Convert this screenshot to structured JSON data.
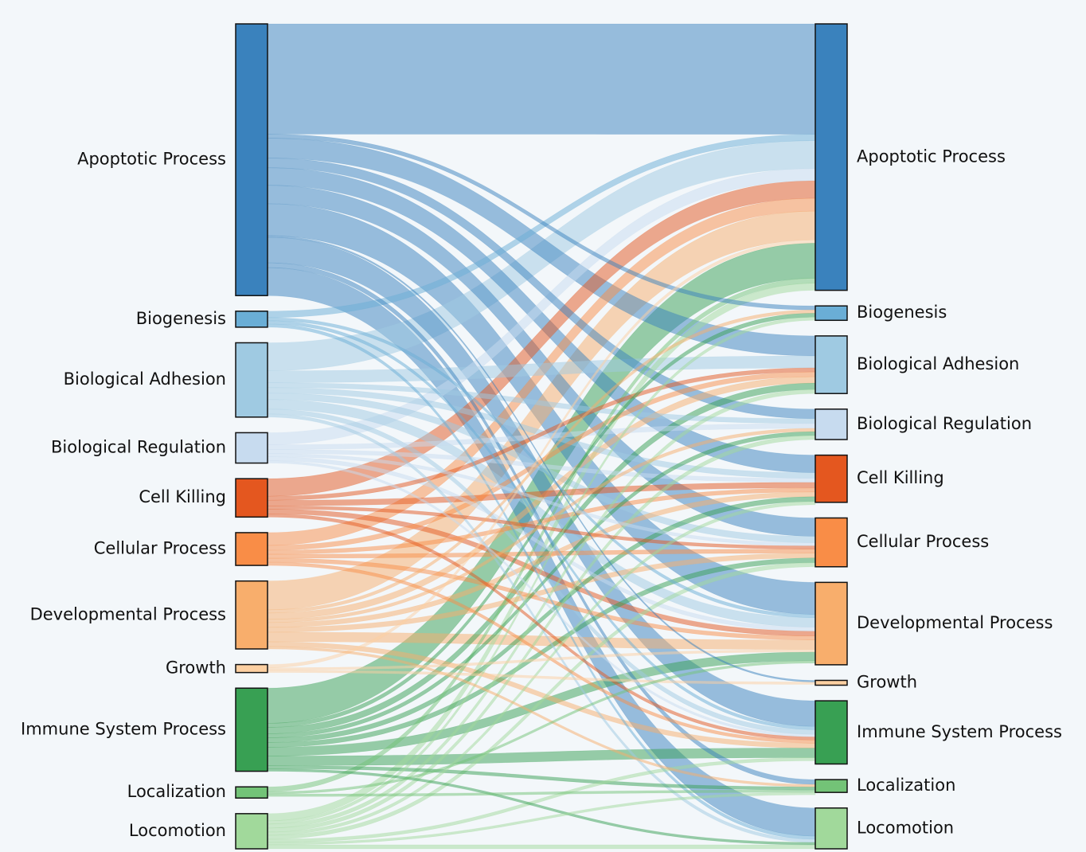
{
  "diagram": {
    "type": "sankey",
    "colors": {
      "background": "#f3f7fa",
      "Apoptotic Process": "#3a82bd",
      "Biogenesis": "#6aaed6",
      "Biological Adhesion": "#9fcae2",
      "Biological Regulation": "#c7dbef",
      "Cell Killing": "#e4571f",
      "Cellular Process": "#f98d47",
      "Developmental Process": "#f8ae6c",
      "Growth": "#fdd0a2",
      "Immune System Process": "#38a053",
      "Localization": "#73c377",
      "Locomotion": "#a1d99b",
      "Other": "#b5b0d5"
    },
    "left_nodes": [
      {
        "label": "Apoptotic Process",
        "value": 34
      },
      {
        "label": "Biogenesis",
        "value": 2
      },
      {
        "label": "Biological Adhesion",
        "value": 9.3
      },
      {
        "label": "Biological Regulation",
        "value": 3.8
      },
      {
        "label": "Cell Killing",
        "value": 4.8
      },
      {
        "label": "Cellular Process",
        "value": 4.1
      },
      {
        "label": "Developmental Process",
        "value": 8.5
      },
      {
        "label": "Growth",
        "value": 1
      },
      {
        "label": "Immune System Process",
        "value": 10.4
      },
      {
        "label": "Localization",
        "value": 1.4
      },
      {
        "label": "Locomotion",
        "value": 4.4
      }
    ],
    "right_nodes": [
      {
        "label": "Apoptotic Process",
        "value": 33.3
      },
      {
        "label": "Biogenesis",
        "value": 1.8
      },
      {
        "label": "Biological Adhesion",
        "value": 7.2
      },
      {
        "label": "Biological Regulation",
        "value": 3.8
      },
      {
        "label": "Cell Killing",
        "value": 5.9
      },
      {
        "label": "Cellular Process",
        "value": 6.1
      },
      {
        "label": "Developmental Process",
        "value": 10.3
      },
      {
        "label": "Growth",
        "value": 0.6
      },
      {
        "label": "Immune System Process",
        "value": 7.9
      },
      {
        "label": "Localization",
        "value": 1.6
      },
      {
        "label": "Locomotion",
        "value": 5.1
      }
    ],
    "links": [
      {
        "source": "Apoptotic Process",
        "target": "Apoptotic Process",
        "value": 13.8
      },
      {
        "source": "Apoptotic Process",
        "target": "Biogenesis",
        "value": 0.5
      },
      {
        "source": "Apoptotic Process",
        "target": "Biological Adhesion",
        "value": 2.5
      },
      {
        "source": "Apoptotic Process",
        "target": "Biological Regulation",
        "value": 1.2
      },
      {
        "source": "Apoptotic Process",
        "target": "Cell Killing",
        "value": 2.2
      },
      {
        "source": "Apoptotic Process",
        "target": "Cellular Process",
        "value": 2.3
      },
      {
        "source": "Apoptotic Process",
        "target": "Developmental Process",
        "value": 4
      },
      {
        "source": "Apoptotic Process",
        "target": "Growth",
        "value": 0.2
      },
      {
        "source": "Apoptotic Process",
        "target": "Immune System Process",
        "value": 3.2
      },
      {
        "source": "Apoptotic Process",
        "target": "Localization",
        "value": 0.6
      },
      {
        "source": "Apoptotic Process",
        "target": "Locomotion",
        "value": 3.5
      },
      {
        "source": "Biogenesis",
        "target": "Apoptotic Process",
        "value": 0.8
      },
      {
        "source": "Biogenesis",
        "target": "Developmental Process",
        "value": 0.4
      },
      {
        "source": "Biogenesis",
        "target": "Immune System Process",
        "value": 0.4
      },
      {
        "source": "Biogenesis",
        "target": "Locomotion",
        "value": 0.4
      },
      {
        "source": "Biological Adhesion",
        "target": "Apoptotic Process",
        "value": 3.5
      },
      {
        "source": "Biological Adhesion",
        "target": "Biological Adhesion",
        "value": 1.5
      },
      {
        "source": "Biological Adhesion",
        "target": "Biological Regulation",
        "value": 0.6
      },
      {
        "source": "Biological Adhesion",
        "target": "Cell Killing",
        "value": 0.7
      },
      {
        "source": "Biological Adhesion",
        "target": "Cellular Process",
        "value": 0.8
      },
      {
        "source": "Biological Adhesion",
        "target": "Developmental Process",
        "value": 1.2
      },
      {
        "source": "Biological Adhesion",
        "target": "Immune System Process",
        "value": 0.6
      },
      {
        "source": "Biological Adhesion",
        "target": "Locomotion",
        "value": 0.4
      },
      {
        "source": "Biological Regulation",
        "target": "Apoptotic Process",
        "value": 1.5
      },
      {
        "source": "Biological Regulation",
        "target": "Biological Regulation",
        "value": 0.6
      },
      {
        "source": "Biological Regulation",
        "target": "Cell Killing",
        "value": 0.5
      },
      {
        "source": "Biological Regulation",
        "target": "Cellular Process",
        "value": 0.4
      },
      {
        "source": "Biological Regulation",
        "target": "Developmental Process",
        "value": 0.5
      },
      {
        "source": "Biological Regulation",
        "target": "Immune System Process",
        "value": 0.3
      },
      {
        "source": "Cell Killing",
        "target": "Apoptotic Process",
        "value": 2.2
      },
      {
        "source": "Cell Killing",
        "target": "Biological Adhesion",
        "value": 0.5
      },
      {
        "source": "Cell Killing",
        "target": "Cell Killing",
        "value": 0.7
      },
      {
        "source": "Cell Killing",
        "target": "Cellular Process",
        "value": 0.4
      },
      {
        "source": "Cell Killing",
        "target": "Developmental Process",
        "value": 0.6
      },
      {
        "source": "Cell Killing",
        "target": "Immune System Process",
        "value": 0.4
      },
      {
        "source": "Cellular Process",
        "target": "Apoptotic Process",
        "value": 1.6
      },
      {
        "source": "Cellular Process",
        "target": "Biological Adhesion",
        "value": 0.6
      },
      {
        "source": "Cellular Process",
        "target": "Cell Killing",
        "value": 0.5
      },
      {
        "source": "Cellular Process",
        "target": "Cellular Process",
        "value": 0.5
      },
      {
        "source": "Cellular Process",
        "target": "Developmental Process",
        "value": 0.5
      },
      {
        "source": "Cellular Process",
        "target": "Immune System Process",
        "value": 0.4
      },
      {
        "source": "Developmental Process",
        "target": "Apoptotic Process",
        "value": 3.6
      },
      {
        "source": "Developmental Process",
        "target": "Biogenesis",
        "value": 0.4
      },
      {
        "source": "Developmental Process",
        "target": "Biological Adhesion",
        "value": 0.8
      },
      {
        "source": "Developmental Process",
        "target": "Biological Regulation",
        "value": 0.4
      },
      {
        "source": "Developmental Process",
        "target": "Cell Killing",
        "value": 0.6
      },
      {
        "source": "Developmental Process",
        "target": "Cellular Process",
        "value": 0.6
      },
      {
        "source": "Developmental Process",
        "target": "Developmental Process",
        "value": 1.2
      },
      {
        "source": "Developmental Process",
        "target": "Immune System Process",
        "value": 0.6
      },
      {
        "source": "Developmental Process",
        "target": "Localization",
        "value": 0.3
      },
      {
        "source": "Growth",
        "target": "Apoptotic Process",
        "value": 0.4
      },
      {
        "source": "Growth",
        "target": "Developmental Process",
        "value": 0.3
      },
      {
        "source": "Growth",
        "target": "Growth",
        "value": 0.3
      },
      {
        "source": "Immune System Process",
        "target": "Apoptotic Process",
        "value": 4.4
      },
      {
        "source": "Immune System Process",
        "target": "Biogenesis",
        "value": 0.5
      },
      {
        "source": "Immune System Process",
        "target": "Biological Adhesion",
        "value": 0.8
      },
      {
        "source": "Immune System Process",
        "target": "Biological Regulation",
        "value": 0.5
      },
      {
        "source": "Immune System Process",
        "target": "Cell Killing",
        "value": 0.6
      },
      {
        "source": "Immune System Process",
        "target": "Cellular Process",
        "value": 0.6
      },
      {
        "source": "Immune System Process",
        "target": "Developmental Process",
        "value": 1.1
      },
      {
        "source": "Immune System Process",
        "target": "Immune System Process",
        "value": 1.2
      },
      {
        "source": "Immune System Process",
        "target": "Localization",
        "value": 0.4
      },
      {
        "source": "Immune System Process",
        "target": "Locomotion",
        "value": 0.3
      },
      {
        "source": "Localization",
        "target": "Apoptotic Process",
        "value": 0.6
      },
      {
        "source": "Localization",
        "target": "Developmental Process",
        "value": 0.3
      },
      {
        "source": "Localization",
        "target": "Localization",
        "value": 0.3
      },
      {
        "source": "Locomotion",
        "target": "Apoptotic Process",
        "value": 0.9
      },
      {
        "source": "Locomotion",
        "target": "Biogenesis",
        "value": 0.4
      },
      {
        "source": "Locomotion",
        "target": "Biological Adhesion",
        "value": 0.5
      },
      {
        "source": "Locomotion",
        "target": "Biological Regulation",
        "value": 0.5
      },
      {
        "source": "Locomotion",
        "target": "Cell Killing",
        "value": 0.4
      },
      {
        "source": "Locomotion",
        "target": "Cellular Process",
        "value": 0.5
      },
      {
        "source": "Locomotion",
        "target": "Immune System Process",
        "value": 0.4
      },
      {
        "source": "Locomotion",
        "target": "Locomotion",
        "value": 0.5
      },
      {
        "source": "Locomotion",
        "target": "Localization",
        "value": 0.3
      }
    ]
  }
}
